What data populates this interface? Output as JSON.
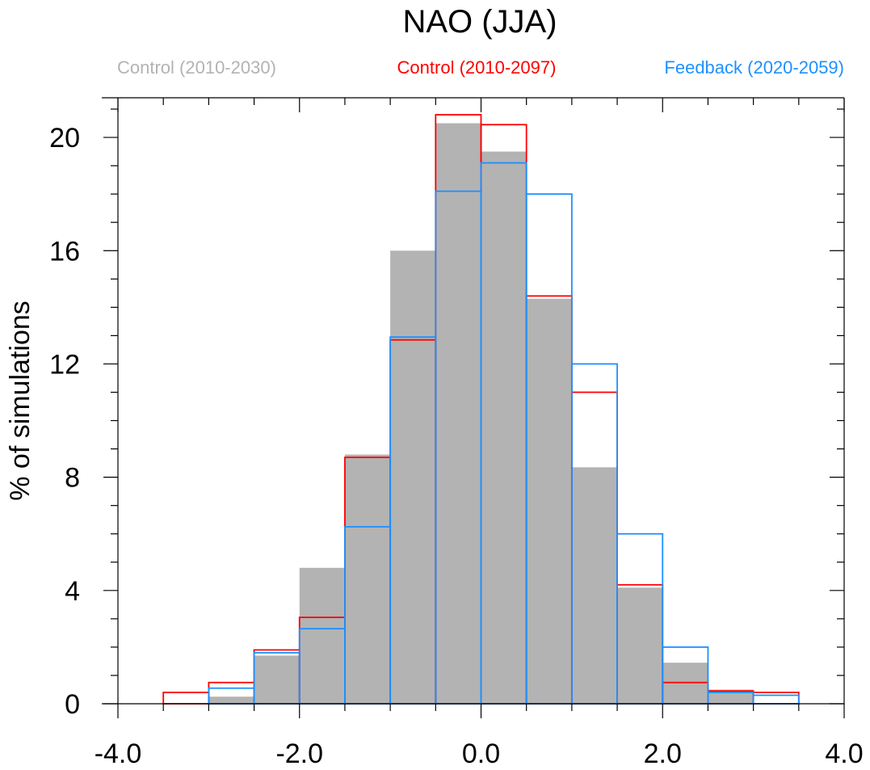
{
  "chart_data": {
    "type": "bar",
    "title": "NAO (JJA)",
    "xlabel": "",
    "ylabel": "% of simulations",
    "xlim": [
      -4.0,
      4.0
    ],
    "ylim": [
      0,
      21.4
    ],
    "bin_width": 0.5,
    "x_ticks": [
      "-4.0",
      "-2.0",
      "0.0",
      "2.0",
      "4.0"
    ],
    "y_ticks": [
      "0",
      "4",
      "8",
      "12",
      "16",
      "20"
    ],
    "x_tick_values": [
      -4,
      -2,
      0,
      2,
      4
    ],
    "y_tick_values": [
      0,
      4,
      8,
      12,
      16,
      20
    ],
    "bin_starts": [
      -3.5,
      -3.0,
      -2.5,
      -2.0,
      -1.5,
      -1.0,
      -0.5,
      0.0,
      0.5,
      1.0,
      1.5,
      2.0,
      2.5,
      3.0
    ],
    "series": [
      {
        "name": "Control (2010-2030)",
        "color": "#b3b3b3",
        "style": "filled",
        "values": [
          0,
          0.25,
          1.7,
          4.8,
          8.8,
          16.0,
          20.5,
          19.5,
          14.3,
          8.35,
          4.1,
          1.45,
          0.5,
          0
        ]
      },
      {
        "name": "Control (2010-2097)",
        "color": "#ff0000",
        "style": "outline",
        "values": [
          0.4,
          0.75,
          1.9,
          3.05,
          8.7,
          12.85,
          20.8,
          20.45,
          14.4,
          11.0,
          4.2,
          0.75,
          0.45,
          0.4
        ]
      },
      {
        "name": "Feedback (2020-2059)",
        "color": "#1e90ff",
        "style": "outline",
        "values": [
          0,
          0.55,
          1.8,
          2.65,
          6.25,
          12.95,
          18.1,
          19.1,
          18.0,
          12.0,
          6.0,
          2.0,
          0.4,
          0.3
        ]
      }
    ]
  }
}
